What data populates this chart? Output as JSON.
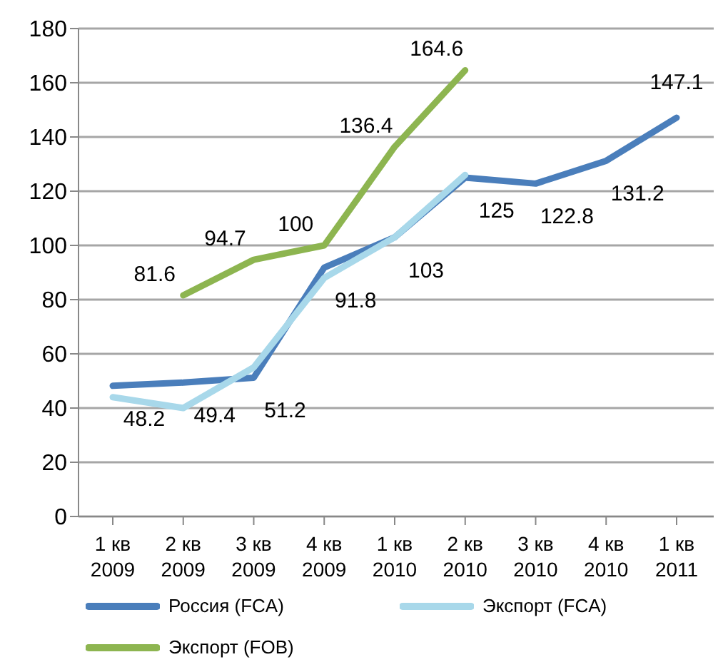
{
  "chart_data": {
    "type": "line",
    "categories": [
      "1 кв 2009",
      "2 кв 2009",
      "3 кв 2009",
      "4 кв 2009",
      "1 кв 2010",
      "2 кв 2010",
      "3 кв 2010",
      "4 кв 2010",
      "1 кв 2011"
    ],
    "series": [
      {
        "name": "Россия (FCA)",
        "color": "#4a7ebb",
        "values": [
          48.2,
          49.4,
          51.2,
          91.8,
          103,
          125,
          122.8,
          131.2,
          147.1
        ],
        "value_labels": [
          "48.2",
          "49.4",
          "51.2",
          "91.8",
          "103",
          "125",
          "122.8",
          "131.2",
          "147.1"
        ]
      },
      {
        "name": "Экспорт (FCA)",
        "color": "#a8d8ea",
        "values": [
          44,
          40,
          55,
          88,
          103,
          126,
          null,
          null,
          null
        ]
      },
      {
        "name": "Экспорт (FOB)",
        "color": "#8db550",
        "values": [
          null,
          81.6,
          94.7,
          100,
          136.4,
          164.6,
          null,
          null,
          null
        ],
        "value_labels": [
          null,
          "81.6",
          "94.7",
          "100",
          "136.4",
          "164.6",
          null,
          null,
          null
        ]
      }
    ],
    "ylim": [
      0,
      180
    ],
    "yticks": [
      0,
      20,
      40,
      60,
      80,
      100,
      120,
      140,
      160,
      180
    ],
    "grid": "y",
    "legend": "bottom",
    "marker": "none",
    "line_style": "solid"
  }
}
